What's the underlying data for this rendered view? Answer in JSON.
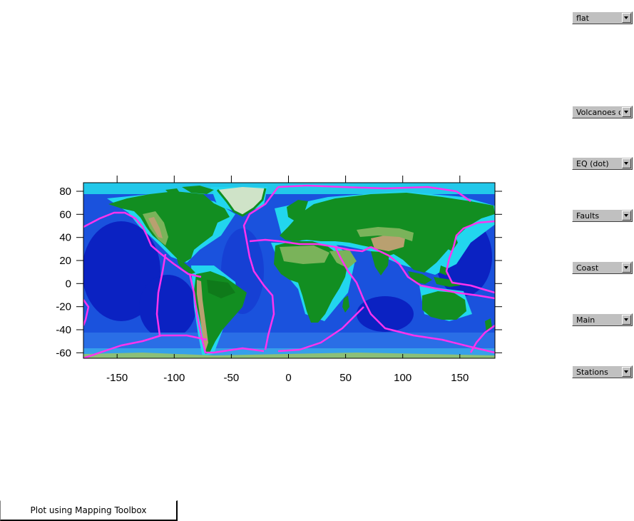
{
  "map": {
    "x_ticks": [
      "-150",
      "-100",
      "-50",
      "0",
      "50",
      "100",
      "150"
    ],
    "y_ticks": [
      "80",
      "60",
      "40",
      "20",
      "0",
      "-20",
      "-40",
      "-60"
    ],
    "colors": {
      "deep_ocean": "#0a1fc8",
      "ocean": "#1d5ce8",
      "shelf": "#22d6ee",
      "lowland": "#0f8f1f",
      "upland": "#7ab35a",
      "mountain": "#b9a070",
      "ice": "#cfe3c8",
      "plate_boundaries": "#ff33ee"
    }
  },
  "controls": {
    "projection": {
      "selected": "flat"
    },
    "volcanoes": {
      "selected": "Volcanoes or"
    },
    "earthquakes": {
      "selected": "EQ (dot)"
    },
    "faults": {
      "selected": "Faults"
    },
    "coast": {
      "selected": "Coast"
    },
    "main": {
      "selected": "Main"
    },
    "stations": {
      "selected": "Stations"
    }
  },
  "plot_button": {
    "label": "Plot using Mapping Toolbox"
  }
}
